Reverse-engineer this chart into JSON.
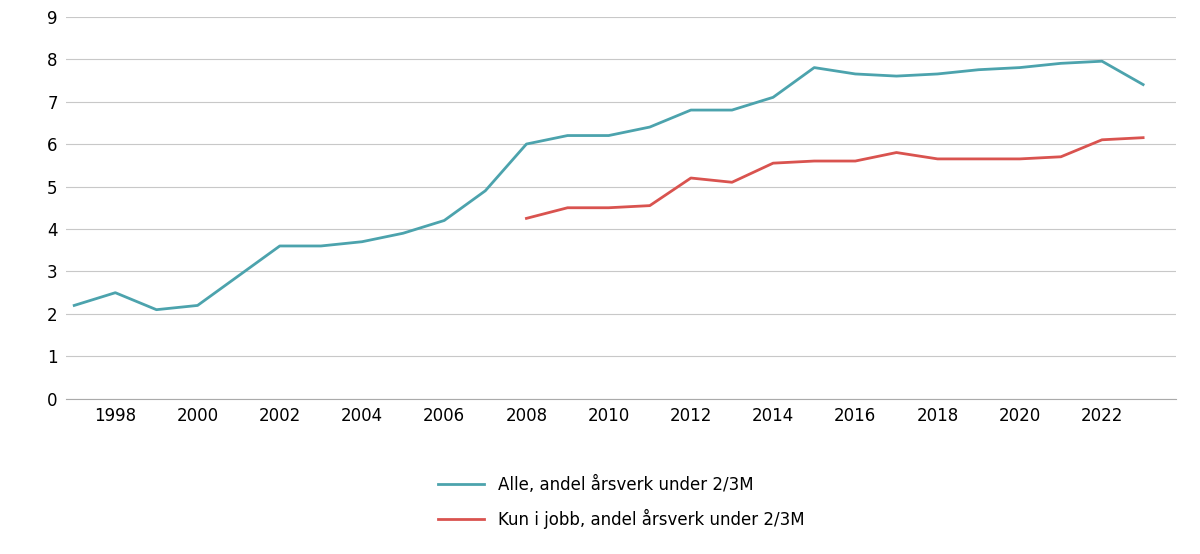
{
  "alle_x": [
    1997,
    1998,
    1999,
    2000,
    2001,
    2002,
    2003,
    2004,
    2005,
    2006,
    2007,
    2008,
    2009,
    2010,
    2011,
    2012,
    2013,
    2014,
    2015,
    2016,
    2017,
    2018,
    2019,
    2020,
    2021,
    2022,
    2023
  ],
  "alle_y": [
    2.2,
    2.5,
    2.1,
    2.2,
    2.9,
    3.6,
    3.6,
    3.7,
    3.9,
    4.2,
    4.9,
    6.0,
    6.2,
    6.2,
    6.4,
    6.8,
    6.8,
    7.1,
    7.8,
    7.65,
    7.6,
    7.65,
    7.75,
    7.8,
    7.9,
    7.95,
    7.4
  ],
  "kun_x": [
    2008,
    2009,
    2010,
    2011,
    2012,
    2013,
    2014,
    2015,
    2016,
    2017,
    2018,
    2019,
    2020,
    2021,
    2022,
    2023
  ],
  "kun_y": [
    4.25,
    4.5,
    4.5,
    4.55,
    5.2,
    5.1,
    5.55,
    5.6,
    5.6,
    5.8,
    5.65,
    5.65,
    5.65,
    5.7,
    6.1,
    6.15
  ],
  "alle_color": "#4ca3ad",
  "kun_color": "#d9534f",
  "alle_label": "Alle, andel årsverk under 2/3M",
  "kun_label": "Kun i jobb, andel årsverk under 2/3M",
  "ylim": [
    0,
    9
  ],
  "yticks": [
    0,
    1,
    2,
    3,
    4,
    5,
    6,
    7,
    8,
    9
  ],
  "xticks": [
    1998,
    2000,
    2002,
    2004,
    2006,
    2008,
    2010,
    2012,
    2014,
    2016,
    2018,
    2020,
    2022
  ],
  "xlim_left": 1996.8,
  "xlim_right": 2023.8,
  "line_width": 2.0,
  "background_color": "#ffffff",
  "grid_color": "#c8c8c8",
  "spine_color": "#aaaaaa",
  "tick_fontsize": 12,
  "legend_fontsize": 12
}
